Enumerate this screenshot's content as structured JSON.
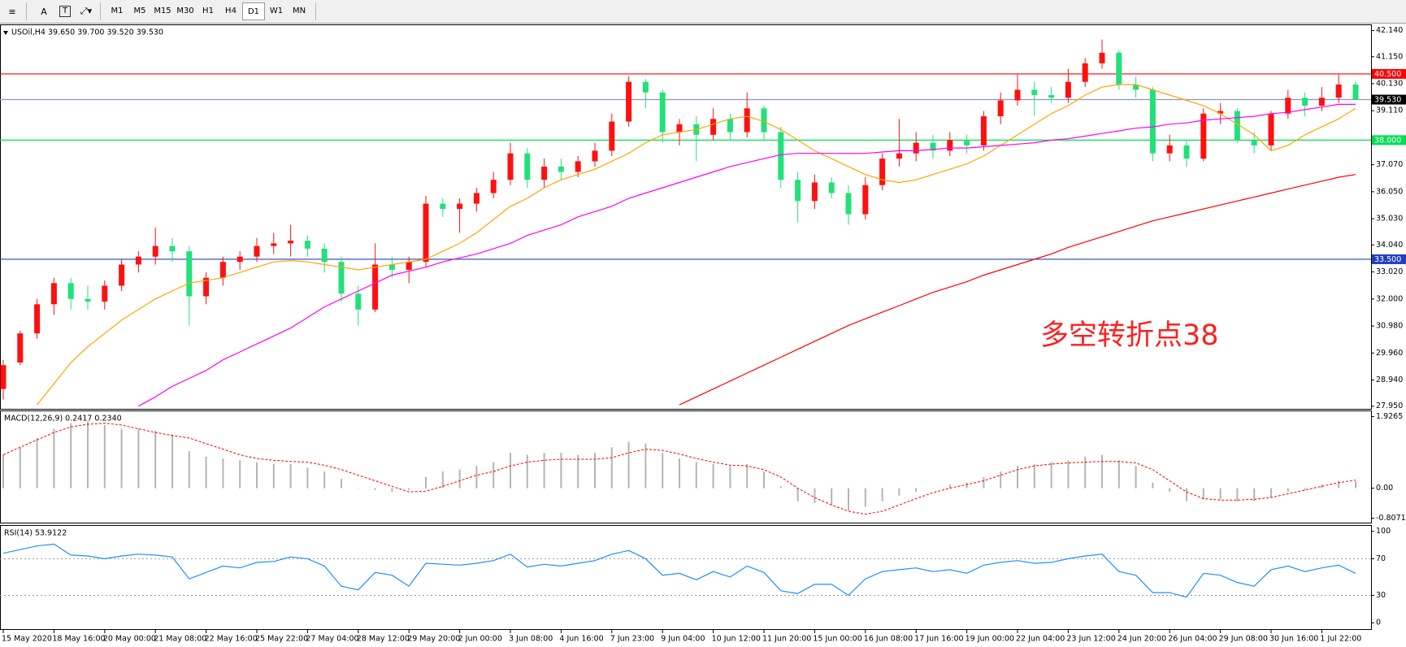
{
  "toolbar": {
    "text_tool": "A",
    "label_tool": "T",
    "timeframes": [
      "M1",
      "M5",
      "M15",
      "M30",
      "H1",
      "H4",
      "D1",
      "W1",
      "MN"
    ]
  },
  "chart_data": [
    {
      "type": "candlestick",
      "title": "USOil,H4  39.650 39.700 39.520 39.530",
      "categories": [
        "15 May 2020",
        null,
        null,
        "18 May 16:00",
        null,
        null,
        "20 May 00:00",
        null,
        null,
        "21 May 08:00",
        null,
        null,
        "22 May 16:00",
        null,
        null,
        "25 May 22:00",
        null,
        null,
        "27 May 04:00",
        null,
        null,
        "28 May 12:00",
        null,
        null,
        "29 May 20:00",
        null,
        null,
        "2 Jun 00:00",
        null,
        null,
        "3 Jun 08:00",
        null,
        null,
        "4 Jun 16:00",
        null,
        null,
        "7 Jun 23:00",
        null,
        null,
        "9 Jun 04:00",
        null,
        null,
        "10 Jun 12:00",
        null,
        null,
        "11 Jun 20:00",
        null,
        null,
        "15 Jun 00:00",
        null,
        null,
        "16 Jun 08:00",
        null,
        null,
        "17 Jun 16:00",
        null,
        null,
        "19 Jun 00:00",
        null,
        null,
        "22 Jun 04:00",
        null,
        null,
        "23 Jun 12:00",
        null,
        null,
        "24 Jun 20:00",
        null,
        null,
        "26 Jun 04:00",
        null,
        null,
        "29 Jun 08:00",
        null,
        null,
        "30 Jun 16:00",
        null,
        null,
        "1 Jul 22:00",
        null,
        null
      ],
      "open": [
        28.6,
        29.6,
        30.7,
        31.8,
        32.6,
        32.0,
        31.9,
        32.5,
        33.3,
        33.6,
        34.0,
        33.8,
        32.1,
        32.8,
        33.4,
        33.6,
        34.0,
        34.1,
        34.2,
        33.9,
        33.4,
        32.2,
        31.6,
        33.3,
        33.1,
        33.4,
        35.6,
        35.4,
        35.6,
        36.0,
        36.5,
        37.5,
        36.5,
        37.0,
        36.8,
        37.2,
        37.6,
        38.7,
        40.2,
        39.8,
        38.3,
        38.6,
        38.2,
        38.8,
        38.3,
        39.2,
        38.3,
        36.5,
        35.7,
        36.4,
        36.0,
        35.2,
        36.3,
        37.3,
        37.5,
        37.9,
        37.6,
        38.0,
        37.8,
        38.9,
        39.5,
        39.9,
        39.7,
        39.6,
        40.2,
        40.9,
        41.3,
        40.1,
        39.9,
        37.5,
        37.8,
        37.3,
        39.0,
        39.1,
        38.0,
        37.8,
        39.0,
        39.6,
        39.3,
        39.6,
        40.1
      ],
      "high": [
        29.7,
        30.8,
        32.0,
        32.8,
        32.8,
        32.5,
        32.7,
        33.5,
        33.8,
        34.7,
        34.3,
        34.0,
        33.0,
        33.6,
        33.8,
        34.3,
        34.5,
        34.8,
        34.4,
        34.1,
        33.6,
        32.5,
        34.1,
        33.6,
        33.6,
        35.9,
        35.8,
        35.8,
        36.2,
        36.8,
        37.9,
        37.7,
        37.3,
        37.3,
        37.4,
        37.9,
        39.0,
        40.4,
        40.3,
        39.9,
        38.8,
        38.9,
        39.2,
        39.0,
        39.8,
        39.3,
        38.5,
        36.8,
        36.7,
        36.6,
        36.3,
        36.6,
        37.5,
        38.8,
        38.3,
        38.2,
        38.3,
        38.2,
        39.1,
        39.8,
        40.5,
        40.2,
        40.0,
        40.7,
        41.1,
        41.8,
        41.4,
        40.4,
        40.0,
        38.2,
        38.0,
        39.2,
        39.4,
        39.2,
        38.3,
        39.1,
        39.9,
        39.8,
        40.0,
        40.5,
        40.2
      ],
      "low": [
        28.2,
        29.5,
        30.5,
        31.4,
        31.6,
        31.6,
        31.6,
        32.3,
        33.0,
        33.3,
        33.4,
        31.0,
        31.8,
        32.5,
        33.1,
        33.4,
        33.7,
        33.6,
        33.6,
        33.0,
        31.9,
        31.0,
        31.5,
        32.8,
        32.6,
        33.2,
        35.1,
        34.5,
        35.3,
        35.8,
        36.3,
        36.2,
        36.2,
        36.5,
        36.6,
        37.0,
        37.4,
        38.5,
        39.2,
        37.9,
        37.8,
        37.2,
        38.0,
        38.0,
        38.1,
        38.0,
        36.2,
        34.9,
        35.4,
        35.8,
        34.8,
        35.0,
        36.1,
        37.0,
        37.2,
        37.3,
        37.4,
        37.5,
        37.6,
        38.6,
        39.3,
        38.9,
        39.4,
        39.4,
        40.0,
        40.7,
        39.9,
        39.6,
        37.2,
        37.2,
        37.0,
        37.2,
        38.6,
        37.9,
        37.5,
        37.6,
        38.8,
        38.9,
        39.1,
        39.4,
        39.52
      ],
      "close": [
        29.5,
        30.7,
        31.8,
        32.6,
        32.0,
        31.9,
        32.5,
        33.3,
        33.6,
        34.0,
        33.8,
        32.1,
        32.8,
        33.4,
        33.6,
        34.0,
        34.1,
        34.2,
        33.9,
        33.4,
        32.2,
        31.6,
        33.3,
        33.1,
        33.4,
        35.6,
        35.4,
        35.6,
        36.0,
        36.5,
        37.5,
        36.5,
        37.0,
        36.8,
        37.2,
        37.6,
        38.7,
        40.2,
        39.8,
        38.3,
        38.6,
        38.2,
        38.8,
        38.3,
        39.2,
        38.3,
        36.5,
        35.7,
        36.4,
        36.0,
        35.2,
        36.3,
        37.3,
        37.5,
        37.9,
        37.6,
        38.0,
        37.8,
        38.9,
        39.5,
        39.9,
        39.7,
        39.6,
        40.2,
        40.9,
        41.3,
        40.1,
        39.9,
        37.5,
        37.8,
        37.3,
        39.0,
        39.1,
        38.0,
        37.8,
        39.0,
        39.6,
        39.3,
        39.6,
        40.1,
        39.53
      ],
      "up_color": "#ff1010",
      "down_color": "#22e07a",
      "lines": [
        {
          "color": "#ffa500",
          "values": [
            null,
            null,
            28.0,
            28.8,
            29.6,
            30.2,
            30.7,
            31.2,
            31.6,
            32.0,
            32.3,
            32.6,
            32.7,
            32.8,
            33.0,
            33.2,
            33.4,
            33.45,
            33.4,
            33.3,
            33.2,
            33.1,
            33.2,
            33.3,
            33.4,
            33.5,
            33.8,
            34.1,
            34.5,
            35.0,
            35.5,
            35.8,
            36.2,
            36.5,
            36.7,
            36.9,
            37.2,
            37.5,
            37.9,
            38.2,
            38.3,
            38.4,
            38.6,
            38.8,
            38.9,
            38.7,
            38.4,
            38.0,
            37.6,
            37.3,
            37.0,
            36.7,
            36.5,
            36.4,
            36.5,
            36.7,
            36.9,
            37.1,
            37.4,
            37.8,
            38.2,
            38.6,
            39.0,
            39.3,
            39.7,
            40.0,
            40.1,
            40.1,
            39.9,
            39.7,
            39.5,
            39.3,
            39.0,
            38.6,
            38.2,
            37.6,
            37.8,
            38.2,
            38.5,
            38.8,
            39.2
          ]
        },
        {
          "color": "#ff00ff",
          "values": [
            null,
            null,
            null,
            null,
            null,
            null,
            null,
            null,
            27.95,
            28.3,
            28.7,
            29.0,
            29.3,
            29.7,
            30.0,
            30.3,
            30.6,
            30.9,
            31.3,
            31.7,
            32.0,
            32.3,
            32.6,
            32.9,
            33.05,
            33.2,
            33.4,
            33.55,
            33.7,
            33.9,
            34.1,
            34.4,
            34.6,
            34.8,
            35.1,
            35.3,
            35.5,
            35.8,
            36.0,
            36.2,
            36.4,
            36.6,
            36.8,
            37.0,
            37.15,
            37.3,
            37.45,
            37.5,
            37.5,
            37.5,
            37.5,
            37.5,
            37.55,
            37.6,
            37.6,
            37.65,
            37.7,
            37.7,
            37.75,
            37.8,
            37.85,
            37.9,
            38.0,
            38.05,
            38.15,
            38.25,
            38.35,
            38.45,
            38.5,
            38.6,
            38.65,
            38.75,
            38.8,
            38.85,
            38.9,
            39.0,
            39.05,
            39.15,
            39.25,
            39.35,
            39.35
          ]
        },
        {
          "color": "#ff0000",
          "values": [
            null,
            null,
            null,
            null,
            null,
            null,
            null,
            null,
            null,
            null,
            null,
            null,
            null,
            null,
            null,
            null,
            null,
            null,
            null,
            null,
            null,
            null,
            null,
            null,
            null,
            null,
            null,
            null,
            null,
            null,
            null,
            null,
            null,
            null,
            null,
            null,
            null,
            null,
            null,
            null,
            28.0,
            28.3,
            28.6,
            28.9,
            29.2,
            29.5,
            29.8,
            30.1,
            30.4,
            30.7,
            31.0,
            31.25,
            31.5,
            31.75,
            32.0,
            32.25,
            32.45,
            32.65,
            32.9,
            33.1,
            33.3,
            33.5,
            33.7,
            33.95,
            34.15,
            34.35,
            34.55,
            34.75,
            34.95,
            35.1,
            35.25,
            35.4,
            35.55,
            35.7,
            35.85,
            36.0,
            36.15,
            36.3,
            36.45,
            36.6,
            36.7
          ]
        }
      ],
      "levels": [
        {
          "value": 40.5,
          "label": "40.500",
          "color": "#ff0000",
          "label_color": "#ff0000"
        },
        {
          "value": 39.53,
          "label": "39.530",
          "color": "#8796c0",
          "label_color": "#000000"
        },
        {
          "value": 38.0,
          "label": "38.000",
          "color": "#00e050",
          "label_color": "#00e050"
        },
        {
          "value": 33.5,
          "label": "33.500",
          "color": "#2040c0",
          "label_color": "#2040c0"
        }
      ],
      "annotation": {
        "text": "多空转折点38",
        "color": "#ff2020"
      },
      "ylim": [
        27.85,
        42.34
      ],
      "yticks": [
        {
          "value": 42.14,
          "label": "42.140"
        },
        {
          "value": 41.15,
          "label": "41.150"
        },
        {
          "value": 40.13,
          "label": "40.130"
        },
        {
          "value": 39.11,
          "label": "39.110"
        },
        {
          "value": 37.07,
          "label": "37.070"
        },
        {
          "value": 36.05,
          "label": "36.050"
        },
        {
          "value": 35.03,
          "label": "35.030"
        },
        {
          "value": 34.04,
          "label": "34.040"
        },
        {
          "value": 33.02,
          "label": "33.020"
        },
        {
          "value": 32.0,
          "label": "32.000"
        },
        {
          "value": 30.98,
          "label": "30.980"
        },
        {
          "value": 29.96,
          "label": "29.960"
        },
        {
          "value": 28.94,
          "label": "28.940"
        },
        {
          "value": 27.95,
          "label": "27.950"
        }
      ]
    },
    {
      "type": "macd",
      "title": "MACD(12,26,9) 0.2417 0.2340",
      "histogram": {
        "color": "#b4b4b4",
        "values": [
          0.9,
          1.1,
          1.35,
          1.6,
          1.75,
          1.8,
          1.7,
          1.6,
          1.6,
          1.55,
          1.45,
          1.0,
          0.85,
          0.8,
          0.75,
          0.7,
          0.65,
          0.65,
          0.55,
          0.45,
          0.25,
          0.0,
          -0.05,
          -0.1,
          -0.05,
          0.3,
          0.45,
          0.5,
          0.6,
          0.7,
          0.95,
          0.9,
          0.95,
          0.95,
          0.9,
          0.95,
          1.1,
          1.25,
          1.2,
          0.95,
          0.8,
          0.7,
          0.65,
          0.6,
          0.65,
          0.45,
          0.05,
          -0.35,
          -0.4,
          -0.45,
          -0.6,
          -0.5,
          -0.35,
          -0.2,
          -0.1,
          0.0,
          0.1,
          0.15,
          0.3,
          0.45,
          0.6,
          0.65,
          0.7,
          0.75,
          0.85,
          0.9,
          0.75,
          0.6,
          0.15,
          -0.1,
          -0.35,
          -0.3,
          -0.3,
          -0.35,
          -0.35,
          -0.25,
          -0.1,
          -0.05,
          0.1,
          0.2,
          0.2
        ]
      },
      "signal": {
        "color": "#ff0000",
        "values": [
          0.9,
          1.1,
          1.3,
          1.5,
          1.65,
          1.72,
          1.75,
          1.7,
          1.6,
          1.5,
          1.42,
          1.35,
          1.2,
          1.05,
          0.9,
          0.8,
          0.75,
          0.72,
          0.7,
          0.62,
          0.5,
          0.35,
          0.2,
          0.05,
          -0.1,
          -0.08,
          0.05,
          0.2,
          0.35,
          0.45,
          0.6,
          0.7,
          0.75,
          0.78,
          0.78,
          0.78,
          0.82,
          0.95,
          1.05,
          1.02,
          0.92,
          0.8,
          0.7,
          0.62,
          0.6,
          0.5,
          0.3,
          0.0,
          -0.25,
          -0.45,
          -0.62,
          -0.7,
          -0.62,
          -0.45,
          -0.28,
          -0.12,
          0.0,
          0.1,
          0.2,
          0.35,
          0.5,
          0.6,
          0.65,
          0.68,
          0.7,
          0.72,
          0.72,
          0.68,
          0.5,
          0.2,
          -0.1,
          -0.28,
          -0.32,
          -0.32,
          -0.3,
          -0.25,
          -0.15,
          -0.05,
          0.05,
          0.15,
          0.22
        ]
      },
      "ylim": [
        -0.927,
        2.07
      ],
      "yticks": [
        1.9265,
        {
          "value": 0,
          "label": "0.00"
        },
        -0.8071
      ]
    },
    {
      "type": "line",
      "title": "RSI(14) 53.9122",
      "color": "#1e90ff",
      "values": [
        76,
        80,
        84,
        86,
        74,
        73,
        70,
        73,
        75,
        74,
        72,
        48,
        55,
        62,
        60,
        66,
        67,
        72,
        70,
        62,
        40,
        36,
        55,
        52,
        40,
        65,
        64,
        63,
        65,
        68,
        75,
        61,
        64,
        62,
        65,
        68,
        75,
        79,
        70,
        52,
        54,
        47,
        56,
        50,
        62,
        55,
        35,
        32,
        42,
        42,
        30,
        48,
        56,
        58,
        60,
        56,
        58,
        54,
        63,
        66,
        68,
        65,
        66,
        70,
        73,
        75,
        56,
        52,
        33,
        33,
        28,
        54,
        52,
        44,
        40,
        58,
        62,
        56,
        60,
        63,
        54
      ],
      "levels": [
        70,
        30
      ],
      "ylim": [
        -6.9,
        105.9
      ],
      "yticks": [
        100,
        70,
        30,
        0
      ]
    }
  ]
}
